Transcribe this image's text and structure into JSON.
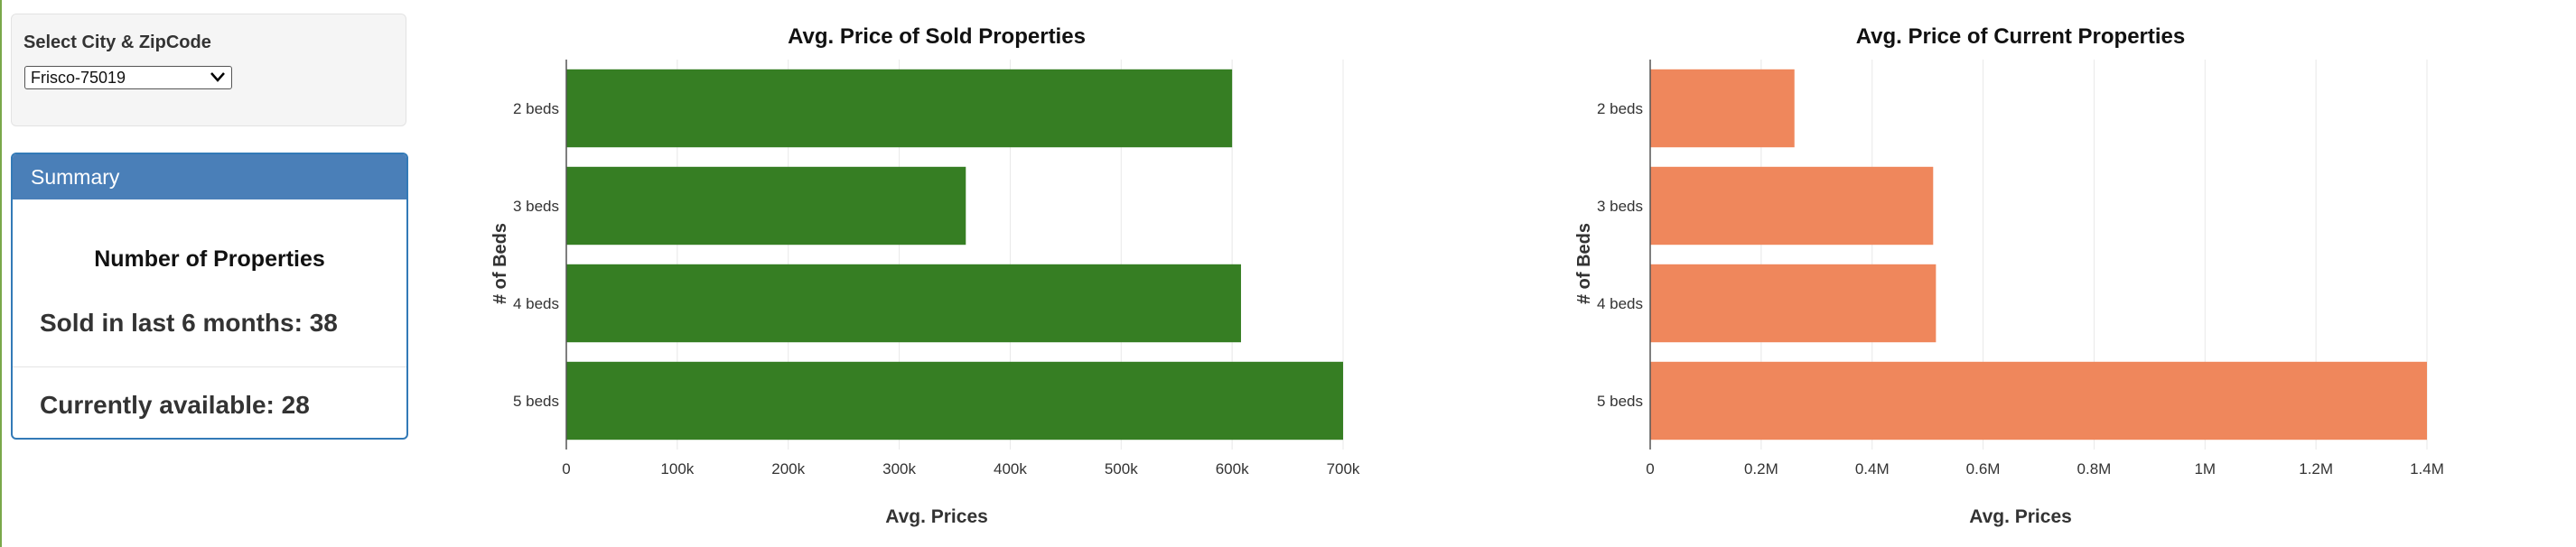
{
  "controls": {
    "select_label": "Select City & ZipCode",
    "selected_value": "Frisco-75019"
  },
  "summary": {
    "heading": "Summary",
    "title": "Number of Properties",
    "sold_text": "Sold in last 6 months: 38",
    "available_text": "Currently available: 28"
  },
  "colors": {
    "panel_heading": "#4a7fb8",
    "sold_bar": "#367e23",
    "current_bar": "#ef875c"
  },
  "chart_data": [
    {
      "type": "bar",
      "orientation": "horizontal",
      "title": "Avg. Price of Sold Properties",
      "xlabel": "Avg. Prices",
      "ylabel": "# of Beds",
      "categories": [
        "2 beds",
        "3 beds",
        "4 beds",
        "5 beds"
      ],
      "values": [
        600000,
        360000,
        608000,
        702000
      ],
      "xlim": [
        0,
        700000
      ],
      "xticks": [
        0,
        100000,
        200000,
        300000,
        400000,
        500000,
        600000,
        700000
      ],
      "xtick_labels": [
        "0",
        "100k",
        "200k",
        "300k",
        "400k",
        "500k",
        "600k",
        "700k"
      ],
      "grid": true,
      "color": "#367e23"
    },
    {
      "type": "bar",
      "orientation": "horizontal",
      "title": "Avg. Price of Current Properties",
      "xlabel": "Avg. Prices",
      "ylabel": "# of Beds",
      "categories": [
        "2 beds",
        "3 beds",
        "4 beds",
        "5 beds"
      ],
      "values": [
        260000,
        510000,
        515000,
        1420000
      ],
      "xlim": [
        0,
        1400000
      ],
      "xticks": [
        0,
        200000,
        400000,
        600000,
        800000,
        1000000,
        1200000,
        1400000
      ],
      "xtick_labels": [
        "0",
        "0.2M",
        "0.4M",
        "0.6M",
        "0.8M",
        "1M",
        "1.2M",
        "1.4M"
      ],
      "grid": true,
      "color": "#ef875c"
    }
  ]
}
